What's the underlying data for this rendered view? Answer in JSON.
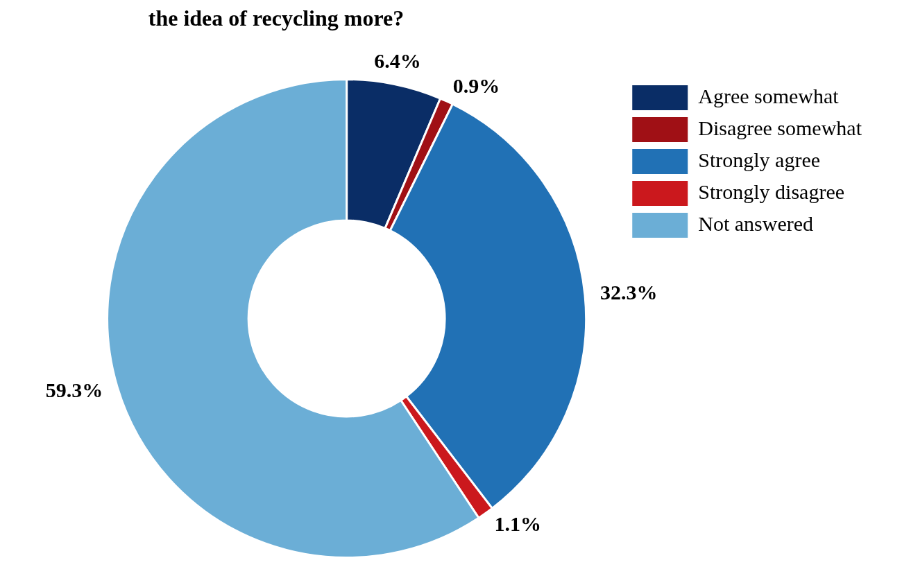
{
  "chart_data": {
    "type": "donut",
    "title": "the idea of recycling more?",
    "categories": [
      "Agree somewhat",
      "Disagree somewhat",
      "Strongly agree",
      "Strongly disagree",
      "Not answered"
    ],
    "values": [
      6.4,
      0.9,
      32.3,
      1.1,
      59.3
    ],
    "colors": [
      "#0a2d66",
      "#a01015",
      "#2171b5",
      "#cb181d",
      "#6baed6"
    ],
    "value_labels": [
      "6.4%",
      "0.9%",
      "32.3%",
      "1.1%",
      "59.3%"
    ],
    "legend": "top right"
  }
}
